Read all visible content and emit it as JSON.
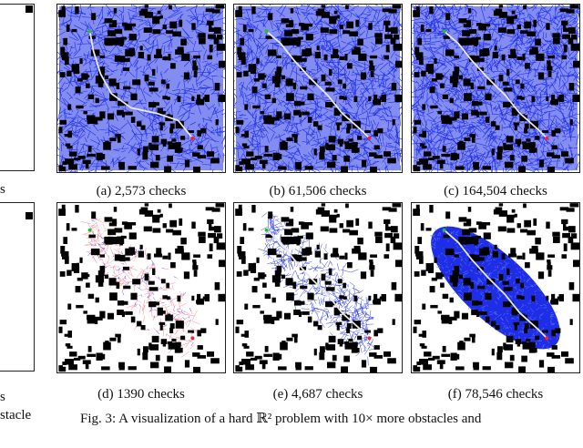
{
  "figure": {
    "panels": [
      {
        "id": "a",
        "caption": "(a) 2,573 checks",
        "density": "full",
        "path": true
      },
      {
        "id": "b",
        "caption": "(b) 61,506 checks",
        "density": "full",
        "path": true
      },
      {
        "id": "c",
        "caption": "(c) 164,504 checks",
        "density": "full",
        "path": true
      },
      {
        "id": "d",
        "caption": "(d) 1390 checks",
        "density": "sparse",
        "path": false
      },
      {
        "id": "e",
        "caption": "(e) 4,687 checks",
        "density": "medium",
        "path": true
      },
      {
        "id": "f",
        "caption": "(f) 78,546 checks",
        "density": "ellipse",
        "path": true
      }
    ],
    "left_fragments": {
      "top_caption": "s",
      "bottom_caption": "s",
      "bottom_text": "stacle"
    },
    "caption": "Fig. 3: A visualization of a hard ℝ² problem with 10× more obstacles and",
    "colors": {
      "tree": "#1e2ee6",
      "obstacle": "#000000",
      "path": "#e8e8ea",
      "start": "#22c02a",
      "goal": "#ff2020"
    }
  }
}
